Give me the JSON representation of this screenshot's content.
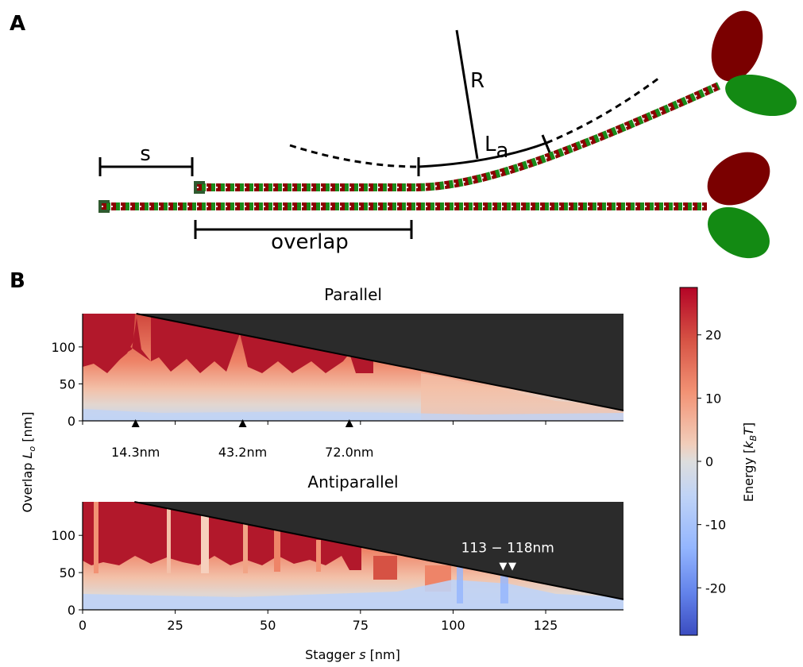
{
  "panel_a": {
    "label": "A",
    "s": "s",
    "R": "R",
    "L_a": {
      "main": "L",
      "sub": "a"
    },
    "overlap": "overlap"
  },
  "panel_b": {
    "label": "B",
    "xlabel": {
      "pre": "Stagger ",
      "var": "s",
      "post": " [nm]"
    },
    "ylabel": {
      "pre": "Overlap ",
      "var": "L",
      "sub": "o",
      "post": " [nm]"
    },
    "xlim": [
      0,
      146
    ],
    "xticks": [
      0,
      25,
      50,
      75,
      100,
      125
    ],
    "ylim": [
      0,
      145
    ],
    "yticks": [
      0,
      50,
      100
    ],
    "heatmaps": [
      {
        "title": "Parallel",
        "boundary": {
          "s": [
            14.5,
            146
          ],
          "overlap": [
            145,
            14
          ]
        },
        "markers": [
          {
            "value": 14.3,
            "label": "14.3nm"
          },
          {
            "value": 43.2,
            "label": "43.2nm"
          },
          {
            "value": 72.0,
            "label": "72.0nm"
          }
        ]
      },
      {
        "title": "Antiparallel",
        "boundary": {
          "s": [
            14,
            146
          ],
          "overlap": [
            145,
            14
          ]
        },
        "marker_label": "113 − 118nm",
        "marker_overlap": 58,
        "markers": [
          113.5,
          116
        ]
      }
    ],
    "colorbar": {
      "label": {
        "pre": "Energy [",
        "var": "k",
        "sub": "B",
        "var2": "T",
        "post": "]"
      },
      "lim": [
        -27.5,
        27.5
      ],
      "ticks": [
        -20,
        -10,
        0,
        10,
        20
      ]
    }
  }
}
